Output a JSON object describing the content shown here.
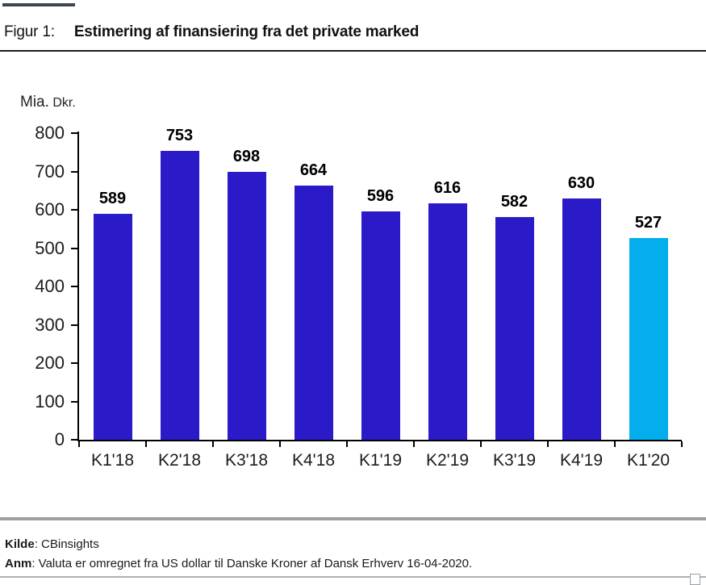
{
  "header": {
    "figure_label": "Figur 1:",
    "title": "Estimering af finansiering fra det private marked"
  },
  "chart_data": {
    "type": "bar",
    "title": "Estimering af finansiering fra det private marked",
    "unit_label_main": "Mia.",
    "unit_label_sub": "Dkr.",
    "categories": [
      "K1'18",
      "K2'18",
      "K3'18",
      "K4'18",
      "K1'19",
      "K2'19",
      "K3'19",
      "K4'19",
      "K1'20"
    ],
    "values": [
      589,
      753,
      698,
      664,
      596,
      616,
      582,
      630,
      527
    ],
    "xlabel": "",
    "ylabel": "Mia. Dkr.",
    "ylim": [
      0,
      800
    ],
    "yticks": [
      0,
      100,
      200,
      300,
      400,
      500,
      600,
      700,
      800
    ],
    "grid": "off",
    "legend": "none",
    "data_labels": "above-bars",
    "bar_color": "#2b1ac8",
    "highlight_color": "#04aeec",
    "highlight_index": 8
  },
  "footer": {
    "source_label": "Kilde",
    "source_text": ": CBinsights",
    "note_label": "Anm",
    "note_text": ": Valuta er omregnet fra US dollar til Danske Kroner af Dansk Erhverv 16-04-2020."
  },
  "colors": {
    "top_accent": "#3d4653",
    "title_divider": "#1f1f1f",
    "footer_divider": "#9ca0a3",
    "bottom_divider": "#aeb1b3",
    "axis": "#000000"
  }
}
